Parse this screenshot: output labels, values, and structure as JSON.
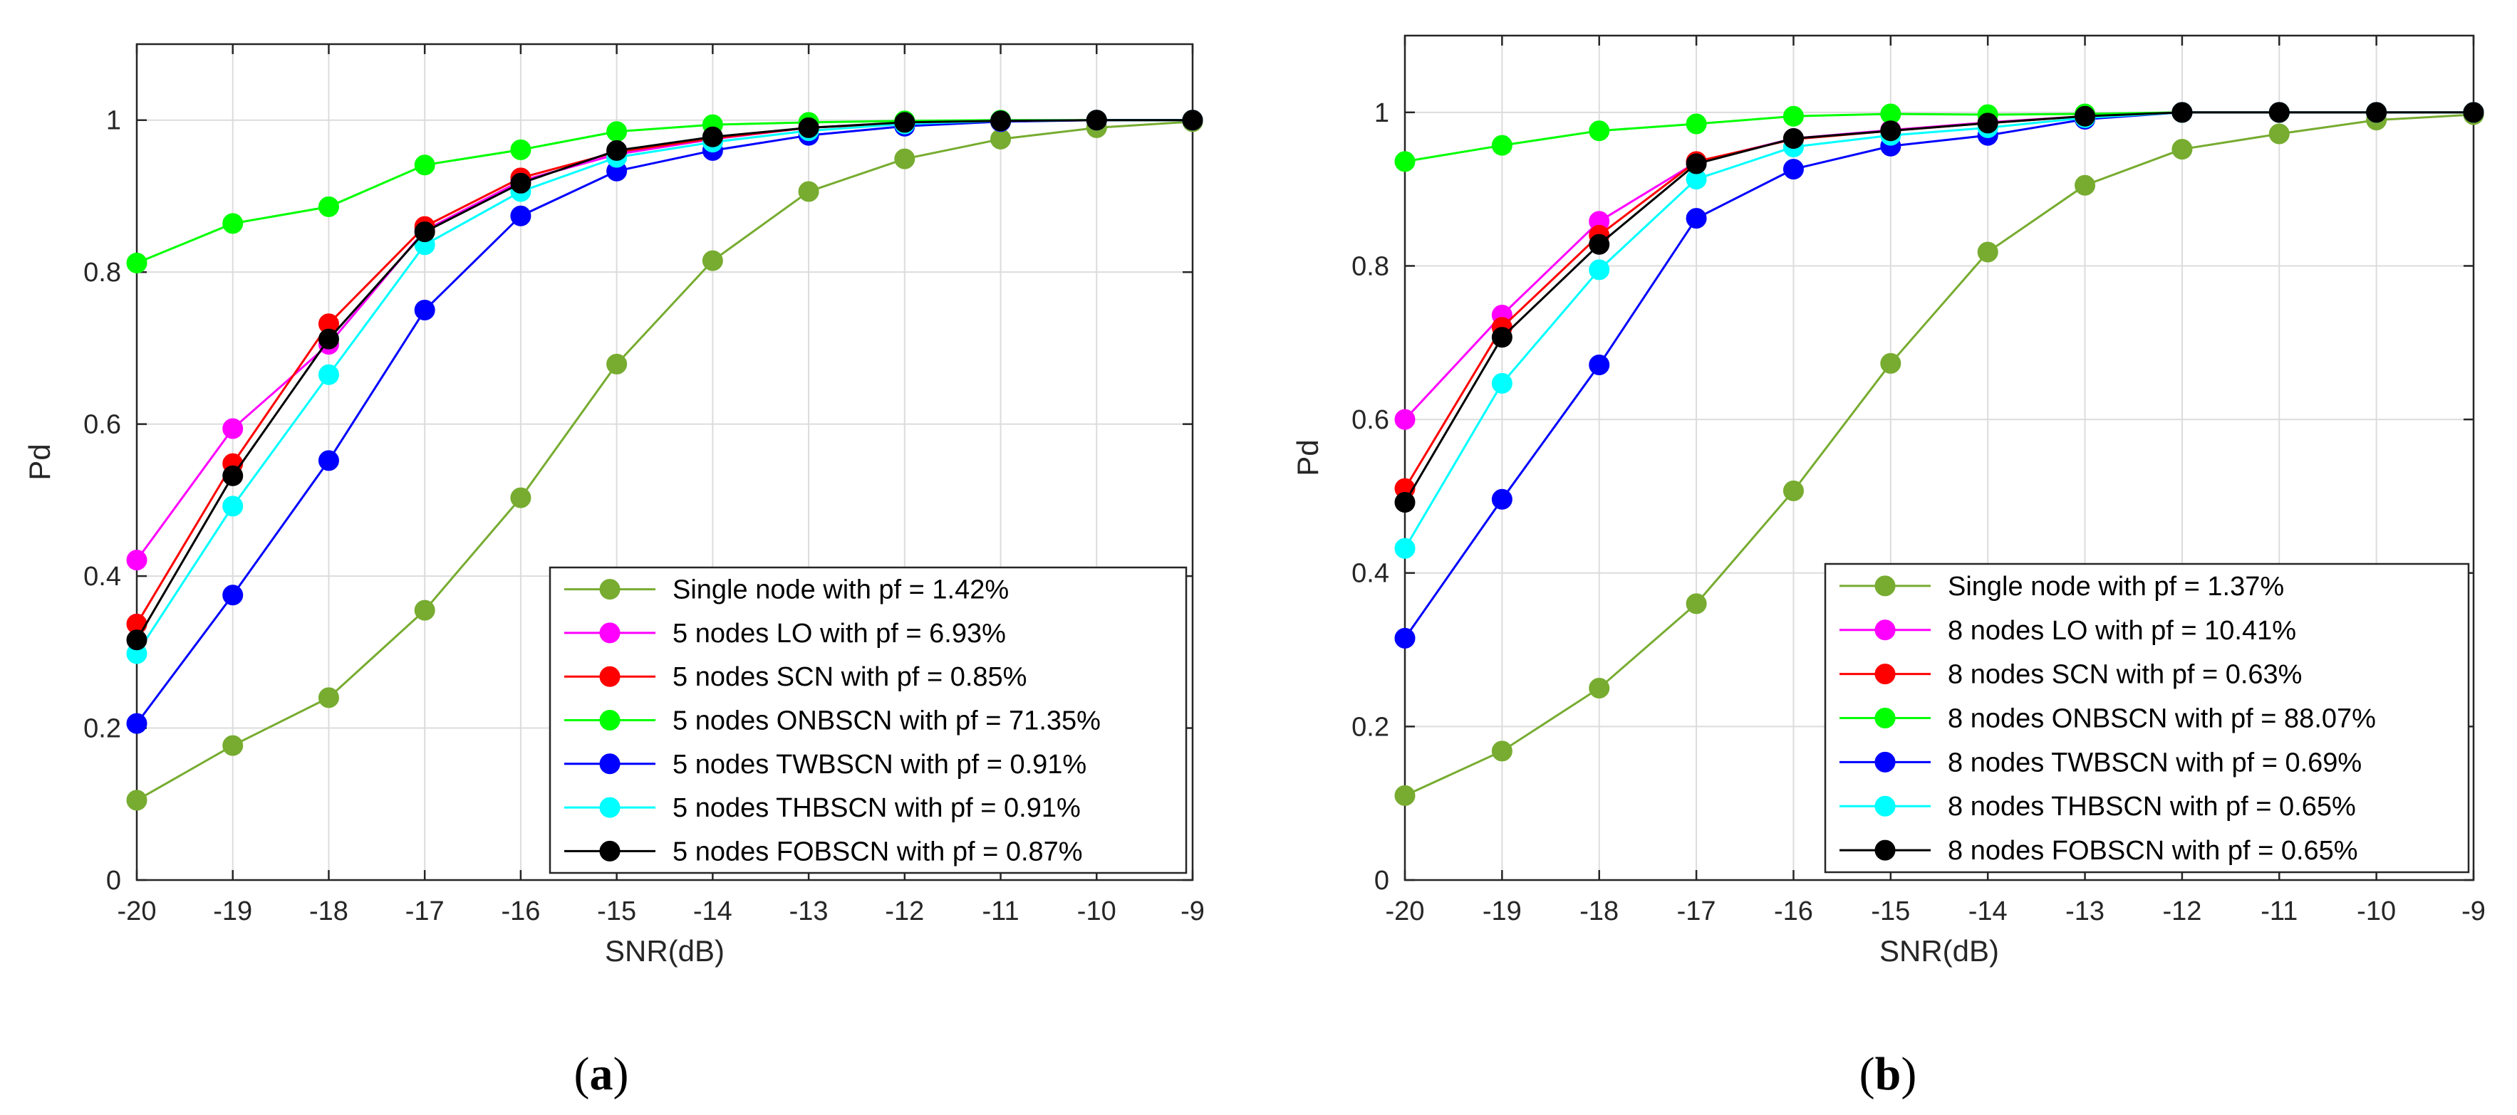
{
  "chart_data": [
    {
      "type": "line",
      "panel_label": "a",
      "xlabel": "SNR(dB)",
      "ylabel": "Pd",
      "xlim": [
        -20,
        -9
      ],
      "ylim": [
        0,
        1.1
      ],
      "x_ticks": [
        -20,
        -19,
        -18,
        -17,
        -16,
        -15,
        -14,
        -13,
        -12,
        -11,
        -10,
        -9
      ],
      "y_ticks": [
        0,
        0.2,
        0.4,
        0.6,
        0.8,
        1
      ],
      "y_tick_labels": [
        "0",
        "0.2",
        "0.4",
        "0.6",
        "0.8",
        "1"
      ],
      "grid": true,
      "legend_position": "bottom-right",
      "x": [
        -20,
        -19,
        -18,
        -17,
        -16,
        -15,
        -14,
        -13,
        -12,
        -11,
        -10,
        -9
      ],
      "series": [
        {
          "name": "Single node with pf = 1.42%",
          "color": "#77ac30",
          "values": [
            0.105,
            0.177,
            0.24,
            0.355,
            0.503,
            0.679,
            0.815,
            0.906,
            0.949,
            0.975,
            0.99,
            0.998
          ]
        },
        {
          "name": "5 nodes LO with pf = 6.93%",
          "color": "#ff00ff",
          "values": [
            0.421,
            0.594,
            0.705,
            0.855,
            0.92,
            0.955,
            0.975,
            0.99,
            0.996,
            0.999,
            1.0,
            1.0
          ]
        },
        {
          "name": "5 nodes SCN with pf = 0.85%",
          "color": "#ff0000",
          "values": [
            0.337,
            0.548,
            0.732,
            0.86,
            0.924,
            0.958,
            0.976,
            0.99,
            0.996,
            0.999,
            1.0,
            1.0
          ]
        },
        {
          "name": "5 nodes ONBSCN with pf = 71.35%",
          "color": "#00ff00",
          "values": [
            0.812,
            0.864,
            0.886,
            0.941,
            0.961,
            0.985,
            0.994,
            0.997,
            0.999,
            1.0,
            1.0,
            1.0
          ]
        },
        {
          "name": "5 nodes TWBSCN with pf = 0.91%",
          "color": "#0000ff",
          "values": [
            0.206,
            0.375,
            0.552,
            0.75,
            0.874,
            0.933,
            0.96,
            0.98,
            0.992,
            0.998,
            1.0,
            1.0
          ]
        },
        {
          "name": "5 nodes THBSCN with pf = 0.91%",
          "color": "#00ffff",
          "values": [
            0.298,
            0.492,
            0.665,
            0.836,
            0.906,
            0.951,
            0.971,
            0.986,
            0.995,
            0.999,
            1.0,
            1.0
          ]
        },
        {
          "name": "5 nodes FOBSCN with pf = 0.87%",
          "color": "#000000",
          "values": [
            0.316,
            0.532,
            0.712,
            0.853,
            0.917,
            0.96,
            0.978,
            0.99,
            0.997,
            0.999,
            1.0,
            1.0
          ]
        }
      ]
    },
    {
      "type": "line",
      "panel_label": "b",
      "xlabel": "SNR(dB)",
      "ylabel": "Pd",
      "xlim": [
        -20,
        -9
      ],
      "ylim": [
        0,
        1.1
      ],
      "x_ticks": [
        -20,
        -19,
        -18,
        -17,
        -16,
        -15,
        -14,
        -13,
        -12,
        -11,
        -10,
        -9
      ],
      "y_ticks": [
        0,
        0.2,
        0.4,
        0.6,
        0.8,
        1
      ],
      "y_tick_labels": [
        "0",
        "0.2",
        "0.4",
        "0.6",
        "0.8",
        "1"
      ],
      "grid": true,
      "legend_position": "bottom-right",
      "x": [
        -20,
        -19,
        -18,
        -17,
        -16,
        -15,
        -14,
        -13,
        -12,
        -11,
        -10,
        -9
      ],
      "series": [
        {
          "name": "Single node with pf = 1.37%",
          "color": "#77ac30",
          "values": [
            0.11,
            0.168,
            0.25,
            0.36,
            0.507,
            0.673,
            0.818,
            0.905,
            0.952,
            0.972,
            0.99,
            0.997
          ]
        },
        {
          "name": "8 nodes LO with pf = 10.41%",
          "color": "#ff00ff",
          "values": [
            0.6,
            0.736,
            0.858,
            0.935,
            0.966,
            0.977,
            0.987,
            0.995,
            1.0,
            1.0,
            1.0,
            1.0
          ]
        },
        {
          "name": "8 nodes SCN with pf = 0.63%",
          "color": "#ff0000",
          "values": [
            0.51,
            0.72,
            0.84,
            0.936,
            0.965,
            0.976,
            0.986,
            0.995,
            1.0,
            1.0,
            1.0,
            1.0
          ]
        },
        {
          "name": "8 nodes ONBSCN with pf = 88.07%",
          "color": "#00ff00",
          "values": [
            0.936,
            0.957,
            0.976,
            0.985,
            0.995,
            0.998,
            0.997,
            0.998,
            1.0,
            1.0,
            1.0,
            1.0
          ]
        },
        {
          "name": "8 nodes TWBSCN with pf = 0.69%",
          "color": "#0000ff",
          "values": [
            0.315,
            0.496,
            0.671,
            0.862,
            0.926,
            0.956,
            0.97,
            0.991,
            1.0,
            1.0,
            1.0,
            1.0
          ]
        },
        {
          "name": "8 nodes THBSCN with pf = 0.65%",
          "color": "#00ffff",
          "values": [
            0.432,
            0.647,
            0.795,
            0.913,
            0.955,
            0.97,
            0.98,
            0.993,
            1.0,
            1.0,
            1.0,
            1.0
          ]
        },
        {
          "name": "8 nodes FOBSCN with pf = 0.65%",
          "color": "#000000",
          "values": [
            0.492,
            0.707,
            0.828,
            0.933,
            0.966,
            0.976,
            0.986,
            0.995,
            1.0,
            1.0,
            1.0,
            1.0
          ]
        }
      ]
    }
  ]
}
